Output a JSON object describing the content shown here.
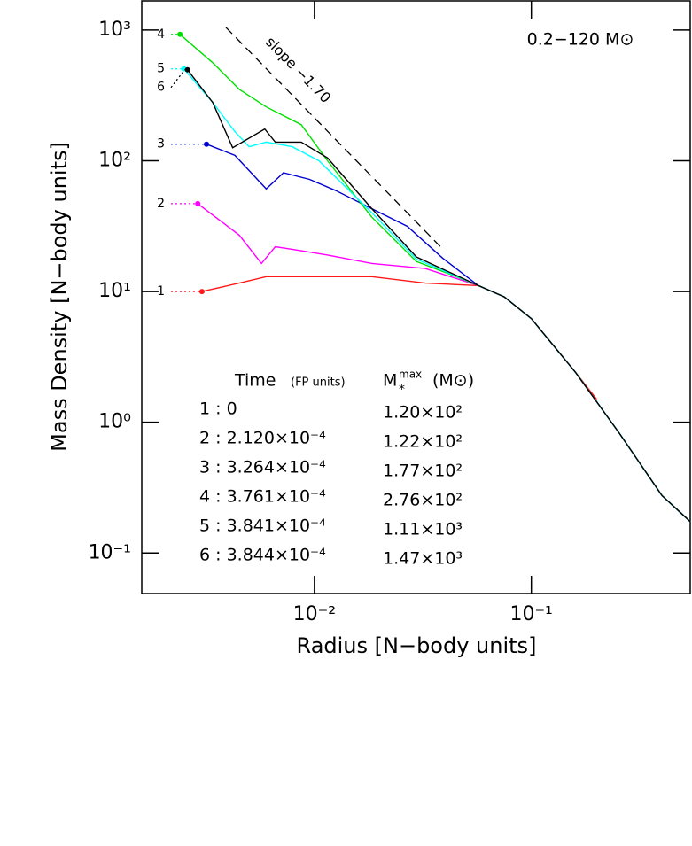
{
  "chart_data": {
    "type": "line",
    "xlabel": "Radius [N−body units]",
    "ylabel": "Mass Density [N−body units]",
    "annotation": "0.2−120 M⊙",
    "log_x": true,
    "log_y": true,
    "grid": false,
    "xlim": [
      0.0016,
      0.54
    ],
    "ylim": [
      0.049,
      1670
    ],
    "xticks": [
      {
        "value": 0.01,
        "label": "10⁻²"
      },
      {
        "value": 0.1,
        "label": "10⁻¹"
      }
    ],
    "yticks": [
      {
        "value": 1000,
        "label": "10³"
      },
      {
        "value": 100,
        "label": "10²"
      },
      {
        "value": 10,
        "label": "10¹"
      },
      {
        "value": 1,
        "label": "10⁰"
      },
      {
        "value": 0.1,
        "label": "10⁻¹"
      }
    ],
    "reference_line": {
      "label": "slope −1.70",
      "x": [
        0.00391,
        0.038
      ],
      "values": [
        1048,
        22.1
      ]
    },
    "series": [
      {
        "name": "1",
        "color": "#ff1a1a",
        "x": [
          0.00303,
          0.0045,
          0.006,
          0.01,
          0.0184,
          0.0324,
          0.057,
          0.075,
          0.1,
          0.16,
          0.2
        ],
        "values": [
          10,
          11.6,
          13,
          13,
          13,
          11.6,
          11.1,
          9.1,
          6.2,
          2.4,
          1.5
        ]
      },
      {
        "name": "2",
        "color": "#ff00ff",
        "x": [
          0.0029,
          0.0045,
          0.0057,
          0.0066,
          0.0087,
          0.0115,
          0.0184,
          0.0324,
          0.057,
          0.075,
          0.1,
          0.16,
          0.255,
          0.4,
          0.54
        ],
        "values": [
          47,
          27,
          16.4,
          22,
          20.5,
          19,
          16.4,
          15,
          11.1,
          9.1,
          6.2,
          2.4,
          0.82,
          0.275,
          0.174
        ]
      },
      {
        "name": "3",
        "color": "#0000d0",
        "x": [
          0.00318,
          0.0043,
          0.006,
          0.0072,
          0.0095,
          0.0126,
          0.0184,
          0.0268,
          0.039,
          0.057,
          0.075,
          0.1,
          0.16,
          0.255,
          0.4,
          0.54
        ],
        "values": [
          134,
          110,
          61,
          81,
          72,
          59,
          43,
          31.5,
          18,
          11.1,
          9.1,
          6.2,
          2.4,
          0.82,
          0.275,
          0.174
        ]
      },
      {
        "name": "4",
        "color": "#00e000",
        "x": [
          0.0024,
          0.0034,
          0.0045,
          0.006,
          0.0087,
          0.0115,
          0.0184,
          0.0295,
          0.043,
          0.057,
          0.075,
          0.1,
          0.16,
          0.255,
          0.4,
          0.54
        ],
        "values": [
          926,
          562,
          352,
          258,
          189,
          100,
          37,
          17,
          13.4,
          11.1,
          9.1,
          6.2,
          2.4,
          0.82,
          0.275,
          0.174
        ]
      },
      {
        "name": "5",
        "color": "#00ffff",
        "x": [
          0.0025,
          0.0034,
          0.0043,
          0.005,
          0.006,
          0.0079,
          0.0105,
          0.0184,
          0.0295,
          0.057,
          0.075,
          0.1,
          0.16,
          0.255,
          0.4,
          0.54
        ],
        "values": [
          505,
          279,
          167,
          128,
          139,
          128,
          100,
          40,
          17.7,
          11.1,
          9.1,
          6.2,
          2.4,
          0.82,
          0.275,
          0.174
        ]
      },
      {
        "name": "6",
        "color": "#000000",
        "x": [
          0.0026,
          0.0034,
          0.0042,
          0.0059,
          0.0066,
          0.0087,
          0.0115,
          0.0184,
          0.0295,
          0.057,
          0.075,
          0.1,
          0.16,
          0.255,
          0.4,
          0.54
        ],
        "values": [
          497,
          279,
          126,
          175,
          139,
          139,
          105,
          43,
          18.4,
          11.1,
          9.1,
          6.2,
          2.4,
          0.82,
          0.275,
          0.174
        ]
      }
    ],
    "legend": {
      "time_header": "Time",
      "time_unit": "(FP units)",
      "mmax_symbol": "M",
      "mmax_sup": "max",
      "mmax_sub": "*",
      "mmax_unit": "(M⊙)",
      "rows": [
        {
          "time": "1 : 0",
          "mmax": "1.20×10²"
        },
        {
          "time": "2 : 2.120×10⁻⁴",
          "mmax": "1.22×10²"
        },
        {
          "time": "3 : 3.264×10⁻⁴",
          "mmax": "1.77×10²"
        },
        {
          "time": "4 : 3.761×10⁻⁴",
          "mmax": "2.76×10²"
        },
        {
          "time": "5 : 3.841×10⁻⁴",
          "mmax": "1.11×10³"
        },
        {
          "time": "6 : 3.844×10⁻⁴",
          "mmax": "1.47×10³"
        }
      ]
    }
  }
}
